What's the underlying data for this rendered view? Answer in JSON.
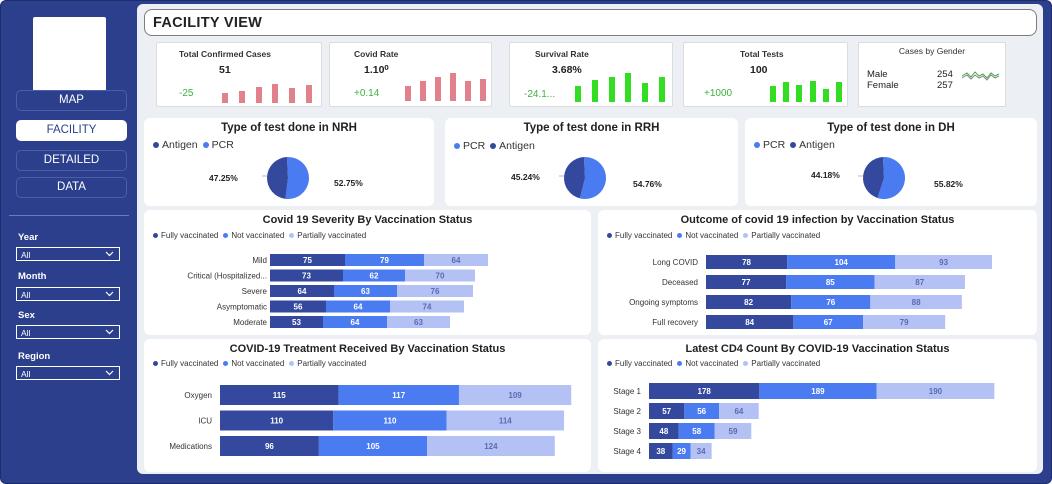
{
  "nav": {
    "items": [
      {
        "label": "MAP",
        "active": false
      },
      {
        "label": "FACILITY",
        "active": true
      },
      {
        "label": "DETAILED",
        "active": false
      },
      {
        "label": "DATA",
        "active": false
      }
    ]
  },
  "filters": [
    {
      "label": "Year",
      "value": "All"
    },
    {
      "label": "Month",
      "value": "All"
    },
    {
      "label": "Sex",
      "value": "All"
    },
    {
      "label": "Region",
      "value": "All"
    }
  ],
  "header": {
    "title": "FACILITY VIEW"
  },
  "kpis": [
    {
      "title": "Total Confirmed Cases",
      "value": "51",
      "delta": "-25",
      "bar_color": "#e0818b",
      "bars": [
        0.45,
        0.55,
        0.75,
        0.85,
        0.7,
        0.8
      ]
    },
    {
      "title": "Covid Rate",
      "value": "1.10⁰",
      "delta": "+0.14",
      "bar_color": "#e0818b",
      "bars": [
        0.55,
        0.7,
        0.85,
        1.0,
        0.7,
        0.8
      ]
    },
    {
      "title": "Survival Rate",
      "value": "3.68%",
      "delta": "-24.1...",
      "bar_color": "#33dd22",
      "bars": [
        0.55,
        0.75,
        0.85,
        1.0,
        0.65,
        0.85
      ]
    },
    {
      "title": "Total Tests",
      "value": "100",
      "delta": "+1000",
      "bar_color": "#33dd22",
      "bars": [
        0.7,
        0.85,
        0.75,
        0.9,
        0.55,
        0.85
      ]
    }
  ],
  "gender": {
    "title": "Cases by Gender",
    "rows": [
      {
        "label": "Male",
        "value": "254"
      },
      {
        "label": "Female",
        "value": "257"
      }
    ]
  },
  "pies": [
    {
      "title": "Type of test done in NRH",
      "legend": [
        {
          "name": "Antigen",
          "color": "#34499d"
        },
        {
          "name": "PCR",
          "color": "#4a7bf0"
        }
      ],
      "dark_pct": 47.25,
      "left_label": "47.25%",
      "right_label": "52.75%"
    },
    {
      "title": "Type of test done in RRH",
      "legend": [
        {
          "name": "PCR",
          "color": "#4a7bf0"
        },
        {
          "name": "Antigen",
          "color": "#34499d"
        }
      ],
      "dark_pct": 45.24,
      "left_label": "45.24%",
      "right_label": "54.76%"
    },
    {
      "title": "Type of test done in DH",
      "legend": [
        {
          "name": "PCR",
          "color": "#4a7bf0"
        },
        {
          "name": "Antigen",
          "color": "#34499d"
        }
      ],
      "dark_pct": 44.18,
      "left_label": "44.18%",
      "right_label": "55.82%"
    }
  ],
  "colors": {
    "fully": "#34499d",
    "not": "#4a7bf0",
    "partial": "#b3c1f4"
  },
  "series_legend": [
    "Fully vaccinated",
    "Not vaccinated",
    "Partially vaccinated"
  ],
  "chart_data": [
    {
      "type": "bar",
      "title": "Covid 19 Severity By Vaccination Status",
      "categories": [
        "Mild",
        "Critical (Hospitalized...",
        "Severe",
        "Asymptomatic",
        "Moderate"
      ],
      "series": [
        {
          "name": "Fully vaccinated",
          "values": [
            75,
            73,
            64,
            56,
            53
          ]
        },
        {
          "name": "Not vaccinated",
          "values": [
            79,
            62,
            63,
            64,
            64
          ]
        },
        {
          "name": "Partially vaccinated",
          "values": [
            64,
            70,
            76,
            74,
            63
          ]
        }
      ]
    },
    {
      "type": "bar",
      "title": "Outcome of covid 19 infection by Vaccination Status",
      "categories": [
        "Long COVID",
        "Deceased",
        "Ongoing symptoms",
        "Full recovery"
      ],
      "series": [
        {
          "name": "Fully vaccinated",
          "values": [
            78,
            77,
            82,
            84
          ]
        },
        {
          "name": "Not vaccinated",
          "values": [
            104,
            85,
            76,
            67
          ]
        },
        {
          "name": "Partially vaccinated",
          "values": [
            93,
            87,
            88,
            79
          ]
        }
      ]
    },
    {
      "type": "bar",
      "title": "COVID-19 Treatment Received By Vaccination Status",
      "categories": [
        "Oxygen",
        "ICU",
        "Medications"
      ],
      "series": [
        {
          "name": "Fully vaccinated",
          "values": [
            115,
            110,
            96
          ]
        },
        {
          "name": "Not vaccinated",
          "values": [
            117,
            110,
            105
          ]
        },
        {
          "name": "Partially vaccinated",
          "values": [
            109,
            114,
            124
          ]
        }
      ]
    },
    {
      "type": "bar",
      "title": "Latest CD4 Count By COVID-19 Vaccination Status",
      "categories": [
        "Stage 1",
        "Stage 2",
        "Stage 3",
        "Stage 4"
      ],
      "series": [
        {
          "name": "Fully vaccinated",
          "values": [
            178,
            57,
            48,
            38
          ]
        },
        {
          "name": "Not vaccinated",
          "values": [
            189,
            56,
            58,
            29
          ]
        },
        {
          "name": "Partially vaccinated",
          "values": [
            190,
            64,
            59,
            34
          ]
        }
      ]
    }
  ]
}
